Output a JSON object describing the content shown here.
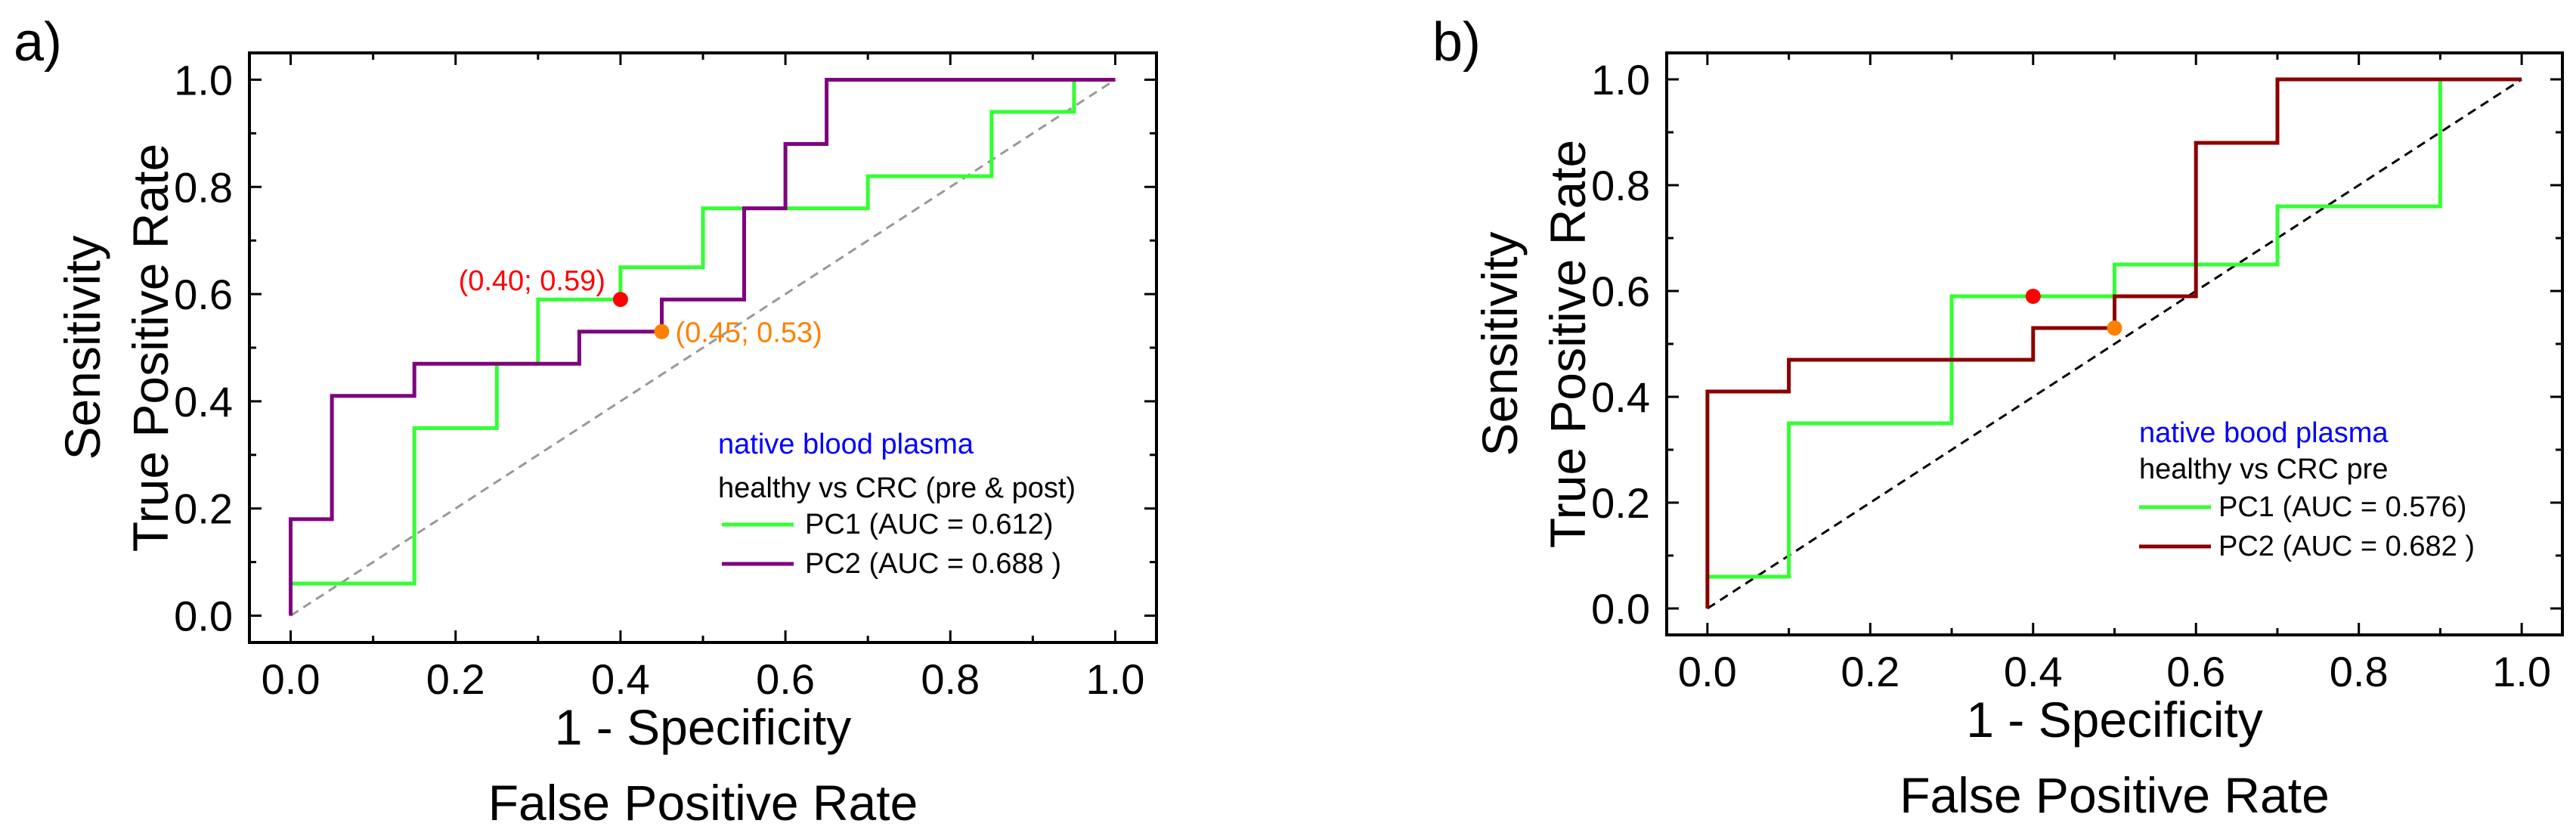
{
  "chart_data": [
    {
      "type": "line",
      "panel_label": "a)",
      "xlabel": "1 - Specificity",
      "xlabel2": "False Positive Rate",
      "ylabel": "Sensitivity",
      "ylabel2": "True Positive Rate",
      "xlim": [
        -0.05,
        1.05
      ],
      "ylim": [
        -0.05,
        1.05
      ],
      "xticks": [
        "0.0",
        "0.2",
        "0.4",
        "0.6",
        "0.8",
        "1.0"
      ],
      "yticks": [
        "0.0",
        "0.2",
        "0.4",
        "0.6",
        "0.8",
        "1.0"
      ],
      "legend_title": "native blood plasma",
      "legend_subtitle": "healthy vs CRC (pre & post)",
      "diagonal_color": "#999999",
      "series": [
        {
          "name": "PC1 (AUC = 0.612)",
          "color": "#33ff33",
          "points": [
            [
              0,
              0.06
            ],
            [
              0.15,
              0.06
            ],
            [
              0.15,
              0.35
            ],
            [
              0.25,
              0.35
            ],
            [
              0.25,
              0.47
            ],
            [
              0.3,
              0.47
            ],
            [
              0.3,
              0.59
            ],
            [
              0.4,
              0.59
            ],
            [
              0.4,
              0.65
            ],
            [
              0.5,
              0.65
            ],
            [
              0.5,
              0.76
            ],
            [
              0.7,
              0.76
            ],
            [
              0.7,
              0.82
            ],
            [
              0.85,
              0.82
            ],
            [
              0.85,
              0.94
            ],
            [
              0.95,
              0.94
            ],
            [
              0.95,
              1.0
            ],
            [
              1.0,
              1.0
            ]
          ]
        },
        {
          "name": "PC2 (AUC = 0.688 )",
          "color": "#800080",
          "points": [
            [
              0,
              0
            ],
            [
              0,
              0.18
            ],
            [
              0.05,
              0.18
            ],
            [
              0.05,
              0.41
            ],
            [
              0.15,
              0.41
            ],
            [
              0.15,
              0.47
            ],
            [
              0.35,
              0.47
            ],
            [
              0.35,
              0.53
            ],
            [
              0.45,
              0.53
            ],
            [
              0.45,
              0.59
            ],
            [
              0.55,
              0.59
            ],
            [
              0.55,
              0.76
            ],
            [
              0.6,
              0.76
            ],
            [
              0.6,
              0.88
            ],
            [
              0.65,
              0.88
            ],
            [
              0.65,
              1.0
            ],
            [
              1.0,
              1.0
            ]
          ]
        }
      ],
      "markers": [
        {
          "x": 0.4,
          "y": 0.59,
          "color": "#ff0000",
          "label": "(0.40; 0.59)",
          "label_side": "left"
        },
        {
          "x": 0.45,
          "y": 0.53,
          "color": "#ff8000",
          "label": "(0.45; 0.53)",
          "label_side": "right"
        }
      ]
    },
    {
      "type": "line",
      "panel_label": "b)",
      "xlabel": "1 - Specificity",
      "xlabel2": "False Positive Rate",
      "ylabel": "Sensitivity",
      "ylabel2": "True Positive Rate",
      "xlim": [
        -0.05,
        1.05
      ],
      "ylim": [
        -0.05,
        1.05
      ],
      "xticks": [
        "0.0",
        "0.2",
        "0.4",
        "0.6",
        "0.8",
        "1.0"
      ],
      "yticks": [
        "0.0",
        "0.2",
        "0.4",
        "0.6",
        "0.8",
        "1.0"
      ],
      "legend_title": "native bood plasma",
      "legend_subtitle": "healthy vs CRC pre",
      "diagonal_color": "#000000",
      "series": [
        {
          "name": "PC1 (AUC = 0.576)",
          "color": "#33ff33",
          "points": [
            [
              0,
              0.06
            ],
            [
              0.1,
              0.06
            ],
            [
              0.1,
              0.35
            ],
            [
              0.3,
              0.35
            ],
            [
              0.3,
              0.59
            ],
            [
              0.5,
              0.59
            ],
            [
              0.5,
              0.65
            ],
            [
              0.7,
              0.65
            ],
            [
              0.7,
              0.76
            ],
            [
              0.9,
              0.76
            ],
            [
              0.9,
              1.0
            ],
            [
              1.0,
              1.0
            ]
          ]
        },
        {
          "name": "PC2 (AUC = 0.682 )",
          "color": "#8b0000",
          "points": [
            [
              0,
              0
            ],
            [
              0,
              0.41
            ],
            [
              0.1,
              0.41
            ],
            [
              0.1,
              0.47
            ],
            [
              0.4,
              0.47
            ],
            [
              0.4,
              0.53
            ],
            [
              0.5,
              0.53
            ],
            [
              0.5,
              0.59
            ],
            [
              0.6,
              0.59
            ],
            [
              0.6,
              0.88
            ],
            [
              0.7,
              0.88
            ],
            [
              0.7,
              1.0
            ],
            [
              1.0,
              1.0
            ]
          ]
        }
      ],
      "markers": [
        {
          "x": 0.4,
          "y": 0.59,
          "color": "#ff0000",
          "label": "",
          "label_side": "none"
        },
        {
          "x": 0.5,
          "y": 0.53,
          "color": "#ff8000",
          "label": "",
          "label_side": "none"
        }
      ]
    }
  ],
  "colors": {
    "legend_title": "#0000ff",
    "axis": "#000000"
  }
}
